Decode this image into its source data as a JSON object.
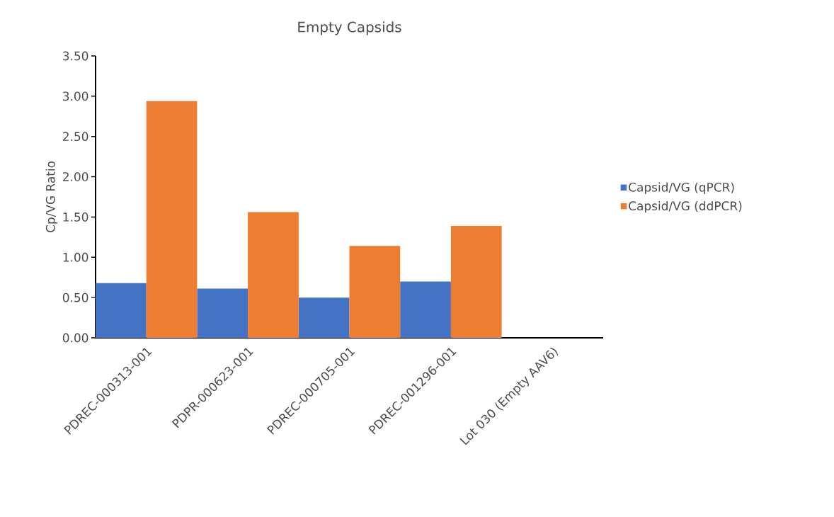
{
  "chart_data": {
    "type": "bar",
    "title": "Empty Capsids",
    "ylabel": "Cp/VG Ratio",
    "categories": [
      "PDREC-000313-001",
      "PDPR-000623-001",
      "PDREC-000705-001",
      "PDREC-001296-001",
      "Lot 030 (Empty AAV6)"
    ],
    "series": [
      {
        "name": "Capsid/VG (qPCR)",
        "color": "#4472c4",
        "values": [
          0.68,
          0.61,
          0.5,
          0.7,
          null
        ]
      },
      {
        "name": "Capsid/VG (ddPCR)",
        "color": "#ed7d31",
        "values": [
          2.94,
          1.56,
          1.14,
          1.39,
          null
        ]
      }
    ],
    "ylim": [
      0,
      3.5
    ],
    "yticks": [
      {
        "value": 0,
        "label": "0.00"
      },
      {
        "value": 0.5,
        "label": "0.50"
      },
      {
        "value": 1,
        "label": "1.00"
      },
      {
        "value": 1.5,
        "label": "1.50"
      },
      {
        "value": 2,
        "label": "2.00"
      },
      {
        "value": 2.5,
        "label": "2.50"
      },
      {
        "value": 3,
        "label": "3.00"
      },
      {
        "value": 3.5,
        "label": "3.50"
      }
    ],
    "grid": false,
    "legend": "right"
  }
}
